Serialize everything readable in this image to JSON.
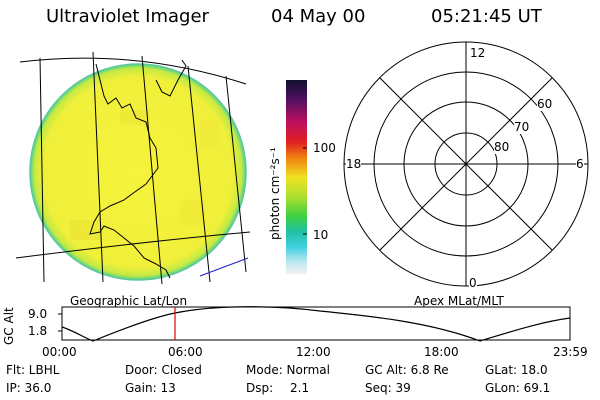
{
  "header": {
    "title": "Ultraviolet Imager",
    "date": "04 May 00",
    "time": "05:21:45 UT"
  },
  "colorbar": {
    "label": "photon cm⁻²s⁻¹",
    "ticks": [
      "100",
      "10"
    ]
  },
  "polar": {
    "mlt_labels": [
      "12",
      "18",
      "6",
      "0"
    ],
    "lat_labels": [
      "60",
      "70",
      "80"
    ]
  },
  "panels": {
    "left_caption": "Geographic Lat/Lon",
    "right_caption": "Apex MLat/MLT"
  },
  "timeline": {
    "ylabel": "GC Alt",
    "ytick_top": "9.0",
    "ytick_bottom": "1.8",
    "xticks": [
      "00:00",
      "06:00",
      "12:00",
      "18:00",
      "23:59"
    ]
  },
  "footer": {
    "flt": "Flt: LBHL",
    "door": "Door: Closed",
    "mode": "Mode: Normal",
    "gcalt": "GC Alt: 6.8 Re",
    "glat": "GLat: 18.0",
    "ip": "IP: 36.0",
    "gain": "Gain: 13",
    "dsp_label": "Dsp:",
    "dsp_value": "2.1",
    "seq": "Seq: 39",
    "glon": "GLon: 69.1"
  },
  "colors": {
    "disk_yellow": "#f4f23a",
    "disk_edge": "#8fd94a",
    "current_time_marker": "#e00000",
    "limb_arc": "#2020d0"
  }
}
